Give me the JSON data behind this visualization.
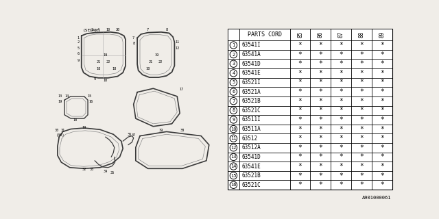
{
  "bg_color": "#f0ede8",
  "table_bg": "#ffffff",
  "border_color": "#000000",
  "line_color": "#000000",
  "parts": [
    [
      "1",
      "63541I"
    ],
    [
      "2",
      "63541A"
    ],
    [
      "3",
      "63541D"
    ],
    [
      "4",
      "63541E"
    ],
    [
      "5",
      "63521I"
    ],
    [
      "6",
      "63521A"
    ],
    [
      "7",
      "63521B"
    ],
    [
      "8",
      "63521C"
    ],
    [
      "9",
      "63511I"
    ],
    [
      "10",
      "63511A"
    ],
    [
      "11",
      "63512"
    ],
    [
      "12",
      "63512A"
    ],
    [
      "13",
      "63541D"
    ],
    [
      "14",
      "63541E"
    ],
    [
      "15",
      "63521B"
    ],
    [
      "16",
      "63521C"
    ]
  ],
  "year_cols": [
    "85",
    "86",
    "87",
    "88",
    "89"
  ],
  "footer_text": "A901000061"
}
